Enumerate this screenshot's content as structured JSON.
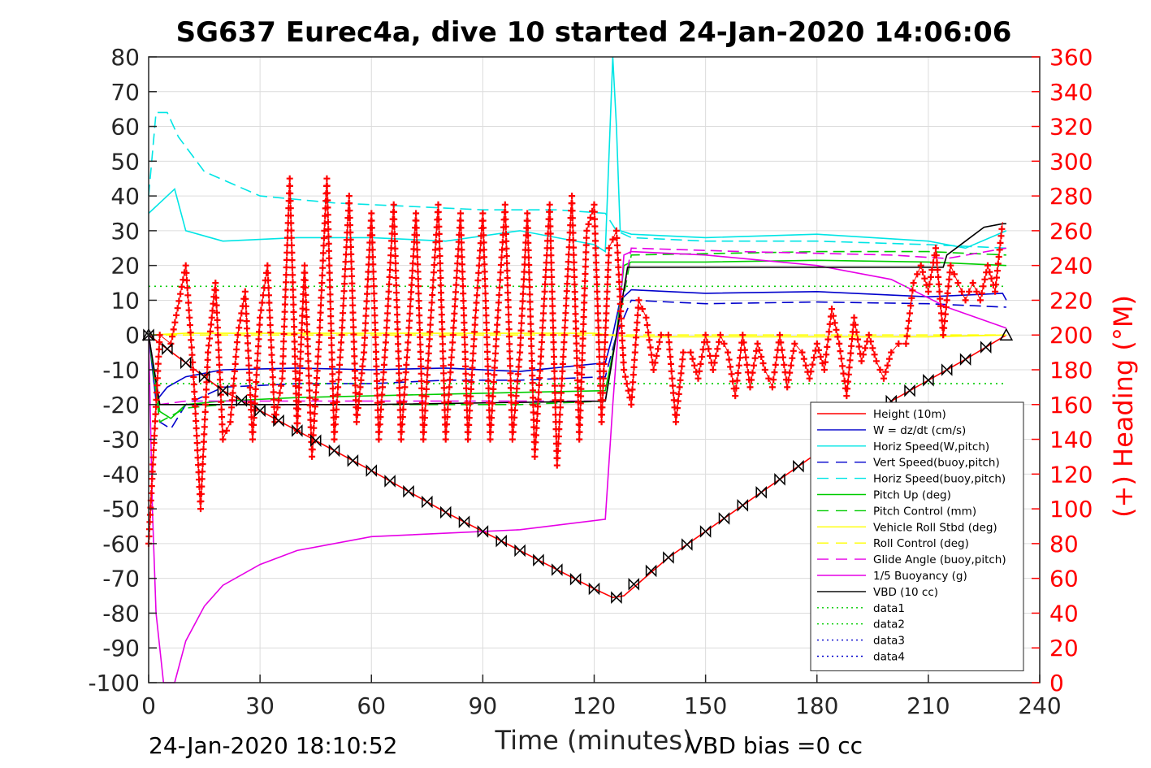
{
  "chart_data": {
    "type": "line",
    "title": "SG637 Eurec4a, dive 10 started 24-Jan-2020 14:06:06",
    "xlabel": "Time (minutes)",
    "ylabel_right": "(+) Heading (°M)",
    "footer_left": "24-Jan-2020 18:10:52",
    "footer_right": "VBD bias =0 cc",
    "xlim": [
      0,
      240
    ],
    "ylim": [
      -100,
      80
    ],
    "ylim_right": [
      0,
      360
    ],
    "xticks": [
      "0",
      "30",
      "60",
      "90",
      "120",
      "150",
      "180",
      "210",
      "240"
    ],
    "yticks_left": [
      "80",
      "70",
      "60",
      "50",
      "40",
      "30",
      "20",
      "10",
      "0",
      "-10",
      "-20",
      "-30",
      "-40",
      "-50",
      "-60",
      "-70",
      "-80",
      "-90",
      "-100"
    ],
    "yticks_right": [
      "360",
      "340",
      "320",
      "300",
      "280",
      "260",
      "240",
      "220",
      "200",
      "180",
      "160",
      "140",
      "120",
      "100",
      "80",
      "60",
      "40",
      "20",
      "0"
    ],
    "grid": true,
    "legend_position": "lower-right",
    "legend": [
      {
        "label": "Height (10m)",
        "color": "#ff0000",
        "dash": "solid"
      },
      {
        "label": "W = dz/dt (cm/s)",
        "color": "#0000cc",
        "dash": "solid"
      },
      {
        "label": "Horiz Speed(W,pitch)",
        "color": "#00e5e5",
        "dash": "solid"
      },
      {
        "label": "Vert Speed(buoy,pitch)",
        "color": "#0000cc",
        "dash": "dashed"
      },
      {
        "label": "Horiz Speed(buoy,pitch)",
        "color": "#00e5e5",
        "dash": "dashed"
      },
      {
        "label": "Pitch Up (deg)",
        "color": "#00cc00",
        "dash": "solid"
      },
      {
        "label": "Pitch Control (mm)",
        "color": "#00cc00",
        "dash": "dashed"
      },
      {
        "label": "Vehicle Roll Stbd (deg)",
        "color": "#ffff00",
        "dash": "solid"
      },
      {
        "label": "Roll Control (deg)",
        "color": "#ffff00",
        "dash": "dashed"
      },
      {
        "label": "Glide Angle (buoy,pitch)",
        "color": "#e600e6",
        "dash": "dashed"
      },
      {
        "label": "1/5 Buoyancy (g)",
        "color": "#e600e6",
        "dash": "solid"
      },
      {
        "label": "VBD (10 cc)",
        "color": "#000000",
        "dash": "solid"
      },
      {
        "label": "data1",
        "color": "#00cc00",
        "dash": "dotted"
      },
      {
        "label": "data2",
        "color": "#00cc00",
        "dash": "dotted"
      },
      {
        "label": "data3",
        "color": "#0000cc",
        "dash": "dotted"
      },
      {
        "label": "data4",
        "color": "#0000cc",
        "dash": "dotted"
      }
    ],
    "series": [
      {
        "name": "Height (10m)",
        "x": [
          0,
          20,
          40,
          60,
          80,
          100,
          120,
          125,
          128,
          140,
          160,
          180,
          200,
          220,
          231
        ],
        "y": [
          0,
          -16,
          -27.5,
          -39,
          -51,
          -62,
          -73,
          -75.5,
          -75,
          -64,
          -49,
          -34,
          -19,
          -7,
          0
        ]
      },
      {
        "name": "W = dz/dt (cm/s)",
        "x": [
          0,
          2,
          5,
          10,
          20,
          40,
          60,
          80,
          100,
          123,
          125,
          127,
          130,
          150,
          180,
          210,
          230,
          231
        ],
        "y": [
          0,
          -19,
          -15,
          -12,
          -10,
          -9.5,
          -10,
          -9.5,
          -10.5,
          -8,
          0,
          10,
          13,
          12,
          12.5,
          11,
          12,
          10
        ]
      },
      {
        "name": "Horiz Speed(W,pitch)",
        "x": [
          0,
          3,
          7,
          10,
          20,
          40,
          60,
          80,
          100,
          120,
          123,
          125,
          126,
          127,
          130,
          150,
          180,
          210,
          220,
          231
        ],
        "y": [
          35,
          38,
          42,
          30,
          27,
          28,
          28,
          27,
          30,
          26,
          24,
          80,
          60,
          30,
          29,
          28,
          29,
          27,
          25,
          30
        ]
      },
      {
        "name": "Vert Speed(buoy,pitch)",
        "x": [
          0,
          3,
          6,
          10,
          20,
          40,
          60,
          80,
          100,
          123,
          126,
          130,
          150,
          180,
          210,
          231
        ],
        "y": [
          0,
          -25,
          -27,
          -20,
          -15,
          -14,
          -14,
          -13,
          -13,
          -12,
          0,
          10,
          9,
          9.5,
          9,
          8
        ]
      },
      {
        "name": "Horiz Speed(buoy,pitch)",
        "x": [
          0,
          2,
          5,
          8,
          15,
          30,
          50,
          70,
          90,
          110,
          123,
          126,
          130,
          150,
          180,
          210,
          231
        ],
        "y": [
          40,
          64,
          64,
          57,
          47,
          40,
          38,
          37,
          36,
          36,
          35,
          30,
          28,
          27,
          27,
          26,
          25
        ]
      },
      {
        "name": "Pitch Up (deg)",
        "x": [
          0,
          3,
          6,
          10,
          20,
          40,
          60,
          80,
          100,
          123,
          126,
          128,
          130,
          150,
          180,
          210,
          231
        ],
        "y": [
          0,
          -22,
          -24,
          -20,
          -19,
          -18,
          -17.5,
          -17,
          -16.5,
          -16,
          0,
          20,
          21,
          21,
          21.5,
          21,
          20
        ]
      },
      {
        "name": "Pitch Control (mm)",
        "x": [
          0,
          3,
          10,
          20,
          60,
          100,
          123,
          126,
          130,
          180,
          210,
          231
        ],
        "y": [
          0,
          -25,
          -21,
          -20,
          -20,
          -20,
          -19,
          0,
          23,
          24,
          24,
          23
        ]
      },
      {
        "name": "Vehicle Roll Stbd (deg)",
        "x": [
          0,
          10,
          30,
          60,
          90,
          120,
          124,
          130,
          150,
          180,
          210,
          231
        ],
        "y": [
          0,
          0.5,
          0.5,
          0.5,
          0.5,
          0.5,
          0,
          -0.5,
          -0.5,
          -0.5,
          -0.5,
          0
        ]
      },
      {
        "name": "Roll Control (deg)",
        "x": [
          0,
          231
        ],
        "y": [
          0,
          0
        ]
      },
      {
        "name": "Glide Angle (buoy,pitch)",
        "x": [
          0,
          3,
          10,
          40,
          80,
          123,
          126,
          130,
          160,
          200,
          215,
          231
        ],
        "y": [
          0,
          -20,
          -19,
          -19,
          -19,
          -19,
          0,
          25,
          24,
          23,
          22,
          25
        ]
      },
      {
        "name": "1/5 Buoyancy (g)",
        "x": [
          0,
          1,
          2,
          4,
          5,
          7,
          10,
          15,
          20,
          30,
          40,
          60,
          80,
          100,
          123,
          125,
          128,
          130,
          150,
          180,
          200,
          215,
          231
        ],
        "y": [
          0,
          -50,
          -80,
          -100,
          -100,
          -100,
          -88,
          -78,
          -72,
          -66,
          -62,
          -58,
          -57,
          -56,
          -53,
          -20,
          23,
          24,
          23,
          20,
          16,
          8,
          2
        ]
      },
      {
        "name": "VBD (10 cc)",
        "x": [
          0,
          3,
          60,
          123,
          126,
          129,
          150,
          190,
          210,
          214,
          215,
          220,
          225,
          230,
          231
        ],
        "y": [
          0,
          -20,
          -20,
          -19,
          0,
          19.5,
          19.5,
          19.5,
          19.5,
          19.5,
          23,
          27,
          31,
          32,
          32
        ]
      },
      {
        "name": "data1",
        "x": [
          0,
          231
        ],
        "y": [
          14,
          14
        ]
      },
      {
        "name": "data2",
        "x": [
          0,
          231
        ],
        "y": [
          -14,
          -14
        ]
      },
      {
        "name": "Heading (°M)",
        "axis": "right",
        "x": [
          0,
          3,
          6,
          10,
          12,
          14,
          16,
          18,
          20,
          22,
          24,
          26,
          28,
          30,
          32,
          34,
          36,
          38,
          40,
          42,
          44,
          46,
          48,
          50,
          52,
          54,
          56,
          58,
          60,
          62,
          64,
          66,
          68,
          70,
          72,
          74,
          76,
          78,
          80,
          82,
          84,
          86,
          88,
          90,
          92,
          94,
          96,
          98,
          100,
          102,
          104,
          106,
          108,
          110,
          112,
          114,
          116,
          118,
          120,
          122,
          124,
          126,
          128,
          130,
          132,
          134,
          136,
          138,
          140,
          142,
          144,
          146,
          148,
          150,
          152,
          154,
          156,
          158,
          160,
          162,
          164,
          166,
          168,
          170,
          172,
          174,
          176,
          178,
          180,
          182,
          184,
          186,
          188,
          190,
          192,
          194,
          196,
          198,
          200,
          202,
          204,
          206,
          208,
          210,
          212,
          214,
          216,
          218,
          220,
          222,
          224,
          226,
          228,
          230
        ],
        "y": [
          80,
          200,
          195,
          240,
          180,
          100,
          190,
          230,
          140,
          150,
          200,
          225,
          140,
          210,
          240,
          150,
          175,
          290,
          145,
          240,
          130,
          200,
          290,
          140,
          200,
          280,
          150,
          190,
          270,
          140,
          200,
          275,
          140,
          200,
          270,
          140,
          210,
          275,
          140,
          200,
          270,
          140,
          210,
          270,
          140,
          210,
          275,
          140,
          190,
          270,
          130,
          200,
          275,
          125,
          200,
          280,
          140,
          260,
          275,
          150,
          250,
          260,
          180,
          160,
          220,
          210,
          180,
          200,
          200,
          150,
          190,
          190,
          175,
          200,
          180,
          200,
          190,
          165,
          200,
          170,
          195,
          180,
          170,
          200,
          170,
          195,
          190,
          175,
          195,
          180,
          215,
          195,
          165,
          210,
          185,
          200,
          185,
          175,
          190,
          195,
          195,
          230,
          240,
          225,
          250,
          200,
          240,
          230,
          220,
          230,
          220,
          240,
          225,
          265
        ]
      },
      {
        "name": "Depth markers",
        "x": [
          0,
          20,
          40,
          60,
          80,
          100,
          120,
          126,
          140,
          160,
          180,
          200,
          220,
          231
        ],
        "y": [
          0,
          -16,
          -27.5,
          -39,
          -51,
          -62,
          -73,
          -75.5,
          -64,
          -49,
          -34,
          -19,
          -7,
          0
        ]
      }
    ]
  }
}
